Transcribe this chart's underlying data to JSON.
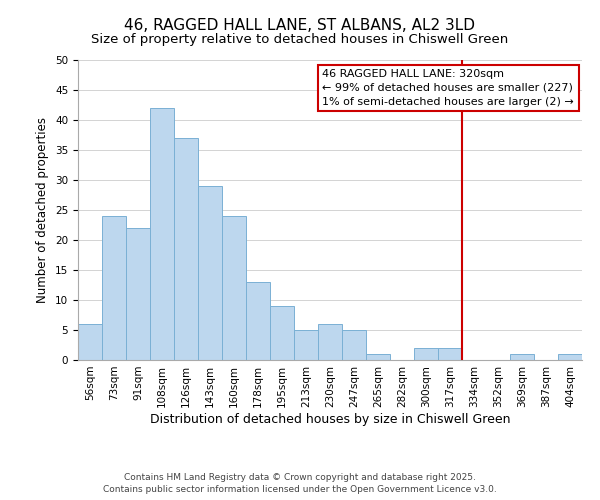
{
  "title": "46, RAGGED HALL LANE, ST ALBANS, AL2 3LD",
  "subtitle": "Size of property relative to detached houses in Chiswell Green",
  "xlabel": "Distribution of detached houses by size in Chiswell Green",
  "ylabel": "Number of detached properties",
  "bin_labels": [
    "56sqm",
    "73sqm",
    "91sqm",
    "108sqm",
    "126sqm",
    "143sqm",
    "160sqm",
    "178sqm",
    "195sqm",
    "213sqm",
    "230sqm",
    "247sqm",
    "265sqm",
    "282sqm",
    "300sqm",
    "317sqm",
    "334sqm",
    "352sqm",
    "369sqm",
    "387sqm",
    "404sqm"
  ],
  "bar_values": [
    6,
    24,
    22,
    42,
    37,
    29,
    24,
    13,
    9,
    5,
    6,
    5,
    1,
    0,
    2,
    2,
    0,
    0,
    1,
    0,
    1
  ],
  "bar_color": "#bdd7ee",
  "bar_edge_color": "#7ab0d4",
  "vline_x_index": 15,
  "vline_color": "#cc0000",
  "ylim": [
    0,
    50
  ],
  "yticks": [
    0,
    5,
    10,
    15,
    20,
    25,
    30,
    35,
    40,
    45,
    50
  ],
  "annotation_title": "46 RAGGED HALL LANE: 320sqm",
  "annotation_line1": "← 99% of detached houses are smaller (227)",
  "annotation_line2": "1% of semi-detached houses are larger (2) →",
  "annotation_box_edge": "#cc0000",
  "footer_line1": "Contains HM Land Registry data © Crown copyright and database right 2025.",
  "footer_line2": "Contains public sector information licensed under the Open Government Licence v3.0.",
  "title_fontsize": 11,
  "subtitle_fontsize": 9.5,
  "xlabel_fontsize": 9,
  "ylabel_fontsize": 8.5,
  "tick_fontsize": 7.5,
  "annotation_fontsize": 8,
  "footer_fontsize": 6.5
}
